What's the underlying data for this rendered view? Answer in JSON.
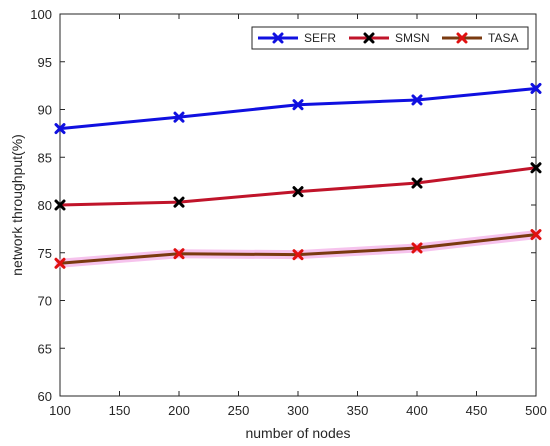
{
  "chart_data": {
    "type": "line",
    "title": "",
    "xlabel": "number of nodes",
    "ylabel": "network throughput(%)",
    "xlim": [
      100,
      500
    ],
    "ylim": [
      60,
      100
    ],
    "xticks": [
      100,
      150,
      200,
      250,
      300,
      350,
      400,
      450,
      500
    ],
    "yticks": [
      60,
      65,
      70,
      75,
      80,
      85,
      90,
      95,
      100
    ],
    "x": [
      100,
      200,
      300,
      400,
      500
    ],
    "grid": false,
    "legend_position": "top-right",
    "series": [
      {
        "name": "SEFR",
        "values": [
          88.0,
          89.2,
          90.5,
          91.0,
          92.2
        ],
        "color": "#1010e0",
        "marker_color": "#1010e0"
      },
      {
        "name": "SMSN",
        "values": [
          80.0,
          80.3,
          81.4,
          82.3,
          83.9
        ],
        "color": "#c0142a",
        "marker_color": "#000000"
      },
      {
        "name": "TASA",
        "values": [
          73.9,
          74.9,
          74.8,
          75.5,
          76.9
        ],
        "color": "#7a3a10",
        "marker_color": "#e01010",
        "glow_color": "#f4b4e8"
      }
    ]
  }
}
